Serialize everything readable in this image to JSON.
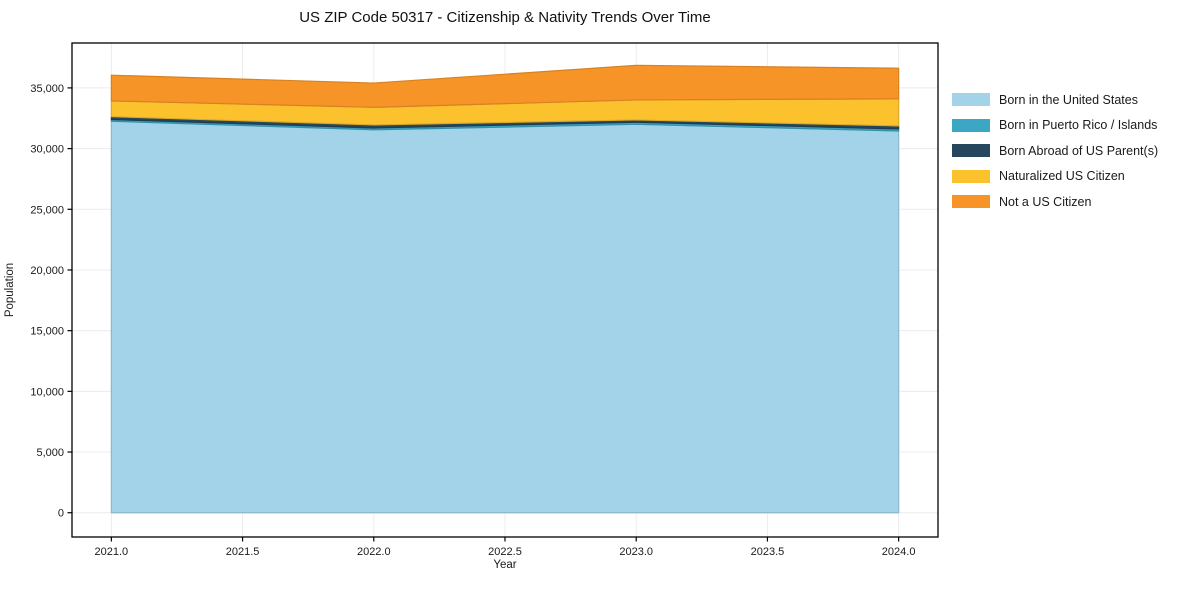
{
  "title": "US ZIP Code 50317 - Citizenship & Nativity Trends Over Time",
  "chart_data": {
    "type": "area",
    "stacked": true,
    "title": "US ZIP Code 50317 - Citizenship & Nativity Trends Over Time",
    "xlabel": "Year",
    "ylabel": "Population",
    "x": [
      2021,
      2022,
      2023,
      2024
    ],
    "series": [
      {
        "name": "Born in the United States",
        "color": "#a3d3e8",
        "values": [
          32250,
          31550,
          32000,
          31450
        ]
      },
      {
        "name": "Born in Puerto Rico / Islands",
        "color": "#3ca7c4",
        "values": [
          150,
          150,
          170,
          170
        ]
      },
      {
        "name": "Born Abroad of US Parent(s)",
        "color": "#25465c",
        "values": [
          230,
          250,
          190,
          250
        ]
      },
      {
        "name": "Naturalized US Citizen",
        "color": "#fcc22e",
        "values": [
          1300,
          1450,
          1650,
          2230
        ]
      },
      {
        "name": "Not a US Citizen",
        "color": "#f79428",
        "values": [
          2120,
          2000,
          2850,
          2520
        ]
      }
    ],
    "totals": [
      36050,
      35400,
      36860,
      36620
    ],
    "xlim": [
      2020.85,
      2024.15
    ],
    "ylim": [
      -2000,
      38700
    ],
    "xticks": {
      "values": [
        2021.0,
        2021.5,
        2022.0,
        2022.5,
        2023.0,
        2023.5,
        2024.0
      ],
      "labels": [
        "2021.0",
        "2021.5",
        "2022.0",
        "2022.5",
        "2023.0",
        "2023.5",
        "2024.0"
      ]
    },
    "yticks": {
      "values": [
        0,
        5000,
        10000,
        15000,
        20000,
        25000,
        30000,
        35000
      ],
      "labels": [
        "0",
        "5,000",
        "10,000",
        "15,000",
        "20,000",
        "25,000",
        "30,000",
        "35,000"
      ]
    },
    "grid": true,
    "grid_color": "#ececec",
    "spine_color": "#000000",
    "tick_label_color": "#1a1a1a",
    "legend_position": "right-outside"
  }
}
